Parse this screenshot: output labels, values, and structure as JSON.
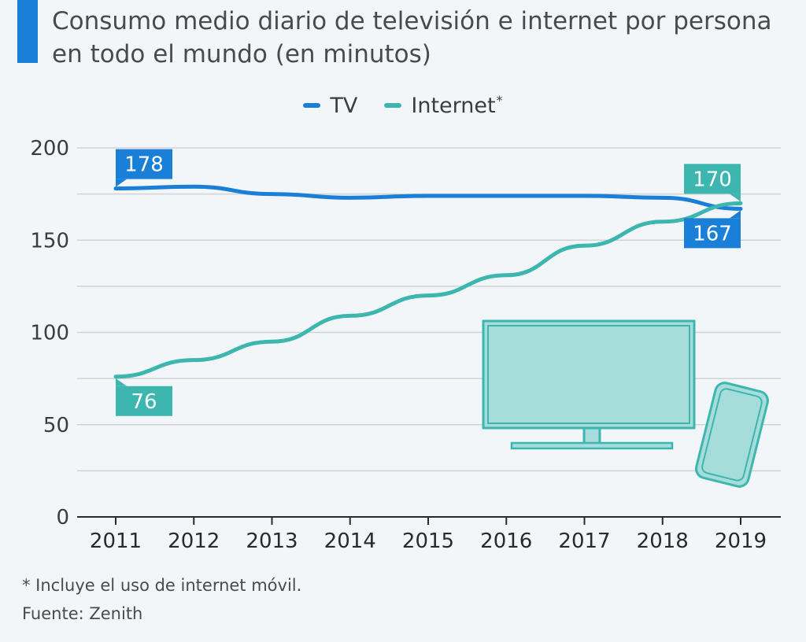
{
  "header": {
    "title_line1": "Consumo medio diario de televisión e internet por persona",
    "title_line2": "en todo el mundo (en minutos)"
  },
  "legend": {
    "tv": "TV",
    "internet": "Internet",
    "internet_sup": "*"
  },
  "footer": {
    "note": "* Incluye el uso de internet móvil.",
    "source": "Fuente: Zenith"
  },
  "colors": {
    "tv": "#1a7fd6",
    "internet": "#3db6b0",
    "accent_bar": "#1a7fd6",
    "grid": "#cfd3d8",
    "illustration_fill": "#a6dcd9",
    "illustration_stroke": "#3db6b0"
  },
  "chart_data": {
    "type": "line",
    "x": [
      "2011",
      "2012",
      "2013",
      "2014",
      "2015",
      "2016",
      "2017",
      "2018",
      "2019"
    ],
    "series": [
      {
        "name": "TV",
        "values": [
          178,
          179,
          175,
          173,
          174,
          174,
          174,
          173,
          167
        ]
      },
      {
        "name": "Internet*",
        "values": [
          76,
          85,
          95,
          109,
          120,
          131,
          147,
          160,
          170
        ]
      }
    ],
    "data_labels": [
      {
        "series": "TV",
        "x": "2011",
        "text": "178"
      },
      {
        "series": "TV",
        "x": "2019",
        "text": "167"
      },
      {
        "series": "Internet*",
        "x": "2011",
        "text": "76"
      },
      {
        "series": "Internet*",
        "x": "2019",
        "text": "170"
      }
    ],
    "yticks": [
      "0",
      "50",
      "100",
      "150",
      "200"
    ],
    "ylim": [
      0,
      200
    ],
    "grid": true,
    "legend_position": "top-center"
  }
}
